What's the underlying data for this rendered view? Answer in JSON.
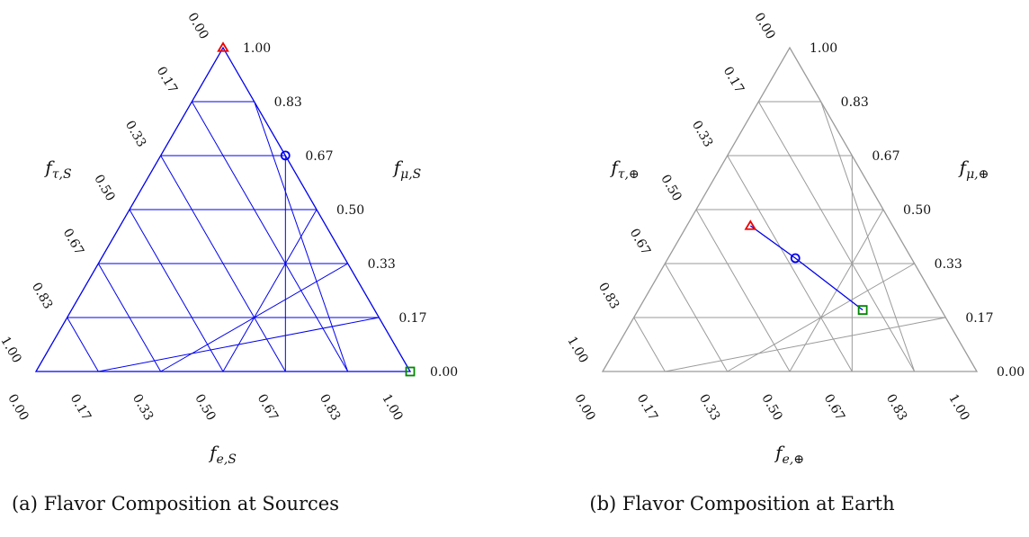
{
  "colors": {
    "panel_a_grid": "#0000ee",
    "panel_b_grid": "#9a9a9a",
    "triangle_marker": "#ee0000",
    "circle_marker": "#0000ee",
    "square_marker": "#008800",
    "line": "#0000ee"
  },
  "chart_data": [
    {
      "type": "ternary",
      "caption": "(a) Flavor Composition at Sources",
      "axes": {
        "bottom": {
          "label_main": "f",
          "label_sub": "e,S"
        },
        "right": {
          "label_main": "f",
          "label_sub": "μ,S"
        },
        "left": {
          "label_main": "f",
          "label_sub": "τ,S"
        }
      },
      "ticks": {
        "bottom": [
          "0.00",
          "0.17",
          "0.33",
          "0.50",
          "0.67",
          "0.83",
          "1.00"
        ],
        "right": [
          "0.00",
          "0.17",
          "0.33",
          "0.50",
          "0.67",
          "0.83",
          "1.00"
        ],
        "left": [
          "0.00",
          "0.17",
          "0.33",
          "0.50",
          "0.67",
          "0.83",
          "1.00"
        ]
      },
      "grid_divisions": 6,
      "points": [
        {
          "marker": "triangle",
          "f_e": 0.0,
          "f_mu": 1.0,
          "f_tau": 0.0
        },
        {
          "marker": "circle",
          "f_e": 0.333,
          "f_mu": 0.667,
          "f_tau": 0.0
        },
        {
          "marker": "square",
          "f_e": 1.0,
          "f_mu": 0.0,
          "f_tau": 0.0
        }
      ],
      "connect_points": false
    },
    {
      "type": "ternary",
      "caption": "(b) Flavor Composition at Earth",
      "axes": {
        "bottom": {
          "label_main": "f",
          "label_sub": "e,⊕"
        },
        "right": {
          "label_main": "f",
          "label_sub": "μ,⊕"
        },
        "left": {
          "label_main": "f",
          "label_sub": "τ,⊕"
        }
      },
      "ticks": {
        "bottom": [
          "0.00",
          "0.17",
          "0.33",
          "0.50",
          "0.67",
          "0.83",
          "1.00"
        ],
        "right": [
          "0.00",
          "0.17",
          "0.33",
          "0.50",
          "0.67",
          "0.83",
          "1.00"
        ],
        "left": [
          "0.00",
          "0.17",
          "0.33",
          "0.50",
          "0.67",
          "0.83",
          "1.00"
        ]
      },
      "grid_divisions": 6,
      "points": [
        {
          "marker": "triangle",
          "f_e": 0.17,
          "f_mu": 0.45,
          "f_tau": 0.38
        },
        {
          "marker": "circle",
          "f_e": 0.34,
          "f_mu": 0.35,
          "f_tau": 0.31
        },
        {
          "marker": "square",
          "f_e": 0.6,
          "f_mu": 0.19,
          "f_tau": 0.21
        }
      ],
      "connect_points": true
    }
  ]
}
